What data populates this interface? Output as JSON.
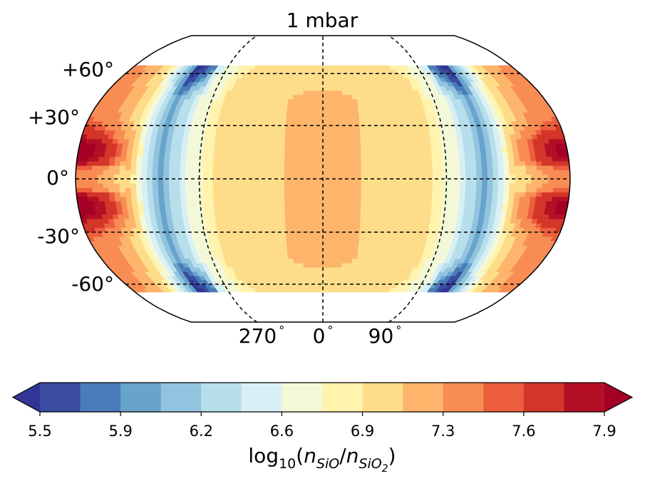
{
  "chart_data": {
    "type": "heatmap",
    "title": "1 mbar",
    "projection": "robinson",
    "lat_ticks": [
      "+60°",
      "+30°",
      "0°",
      "-30°",
      "-60°"
    ],
    "lon_ticks": [
      {
        "main": "270",
        "sup": "°"
      },
      {
        "main": "0",
        "sup": "°"
      },
      {
        "main": "90",
        "sup": "°"
      }
    ],
    "lat_range": [
      -65,
      65
    ],
    "colorbar": {
      "label_prefix": "log",
      "label_sub": "10",
      "label_open": "(",
      "label_n1": "n",
      "label_n1_sub": "SiO",
      "label_slash": "/",
      "label_n2": "n",
      "label_n2_sub": "SiO",
      "label_n2_subsub": "2",
      "label_close": ")",
      "levels": [
        5.5,
        5.7,
        5.9,
        6.0,
        6.2,
        6.4,
        6.6,
        6.8,
        6.9,
        7.1,
        7.3,
        7.5,
        7.6,
        7.8,
        7.9
      ],
      "tick_labels": [
        "5.5",
        "5.9",
        "6.2",
        "6.6",
        "6.9",
        "7.3",
        "7.6",
        "7.9"
      ],
      "colors": [
        "#3a4ca0",
        "#4a7cb9",
        "#68a3cc",
        "#92c4df",
        "#b6dfeb",
        "#d9eff6",
        "#f3f9d8",
        "#fff3ae",
        "#fedd8a",
        "#fdb56b",
        "#f88d54",
        "#ec5e3e",
        "#d33528",
        "#b50f26"
      ],
      "extend_low_color": "#313695",
      "extend_high_color": "#a50026"
    }
  }
}
